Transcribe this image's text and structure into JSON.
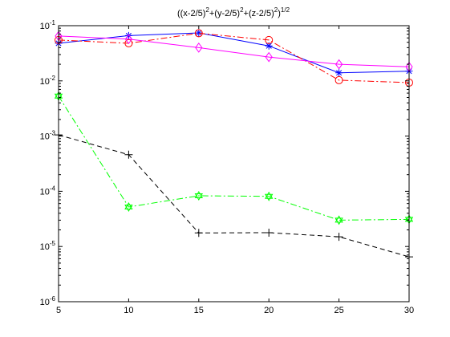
{
  "chart_data": {
    "type": "line",
    "title_parts": [
      {
        "text": "((x-2/5)",
        "sup": false
      },
      {
        "text": "2",
        "sup": true
      },
      {
        "text": "+(y-2/5)",
        "sup": false
      },
      {
        "text": "2",
        "sup": true
      },
      {
        "text": "+(z-2/5)",
        "sup": false
      },
      {
        "text": "2",
        "sup": true
      },
      {
        "text": ")",
        "sup": false
      },
      {
        "text": "1/2",
        "sup": true
      }
    ],
    "xlabel": "",
    "ylabel": "",
    "xlim": [
      5,
      30
    ],
    "ylim": [
      1e-06,
      0.1
    ],
    "yscale": "log",
    "x": [
      5,
      10,
      15,
      20,
      25,
      30
    ],
    "xticks": [
      "5",
      "10",
      "15",
      "20",
      "25",
      "30"
    ],
    "yticks": [
      {
        "value": 1e-06,
        "base": "10",
        "exp": "-6"
      },
      {
        "value": 1e-05,
        "base": "10",
        "exp": "-5"
      },
      {
        "value": 0.0001,
        "base": "10",
        "exp": "-4"
      },
      {
        "value": 0.001,
        "base": "10",
        "exp": "-3"
      },
      {
        "value": 0.01,
        "base": "10",
        "exp": "-2"
      },
      {
        "value": 0.1,
        "base": "10",
        "exp": "-1"
      }
    ],
    "grid": false,
    "legend": "none",
    "series": [
      {
        "values": [
          0.048,
          0.066,
          0.074,
          0.043,
          0.014,
          0.015
        ],
        "color": "#0000ff",
        "line": "solid",
        "marker": "star"
      },
      {
        "values": [
          0.055,
          0.048,
          0.073,
          0.055,
          0.0103,
          0.0093
        ],
        "color": "#ff0000",
        "line": "dashdot",
        "marker": "circle"
      },
      {
        "values": [
          0.065,
          0.057,
          0.04,
          0.027,
          0.02,
          0.018
        ],
        "color": "#ff00ff",
        "line": "solid",
        "marker": "diamond"
      },
      {
        "values": [
          0.00105,
          0.00046,
          1.76e-05,
          1.78e-05,
          1.5e-05,
          6.5e-06
        ],
        "color": "#000000",
        "line": "dashed",
        "marker": "plus"
      },
      {
        "values": [
          0.0053,
          5.2e-05,
          8.3e-05,
          8.1e-05,
          3e-05,
          3.1e-05
        ],
        "color": "#00ff00",
        "line": "dashdot",
        "marker": "hexagram"
      }
    ]
  }
}
